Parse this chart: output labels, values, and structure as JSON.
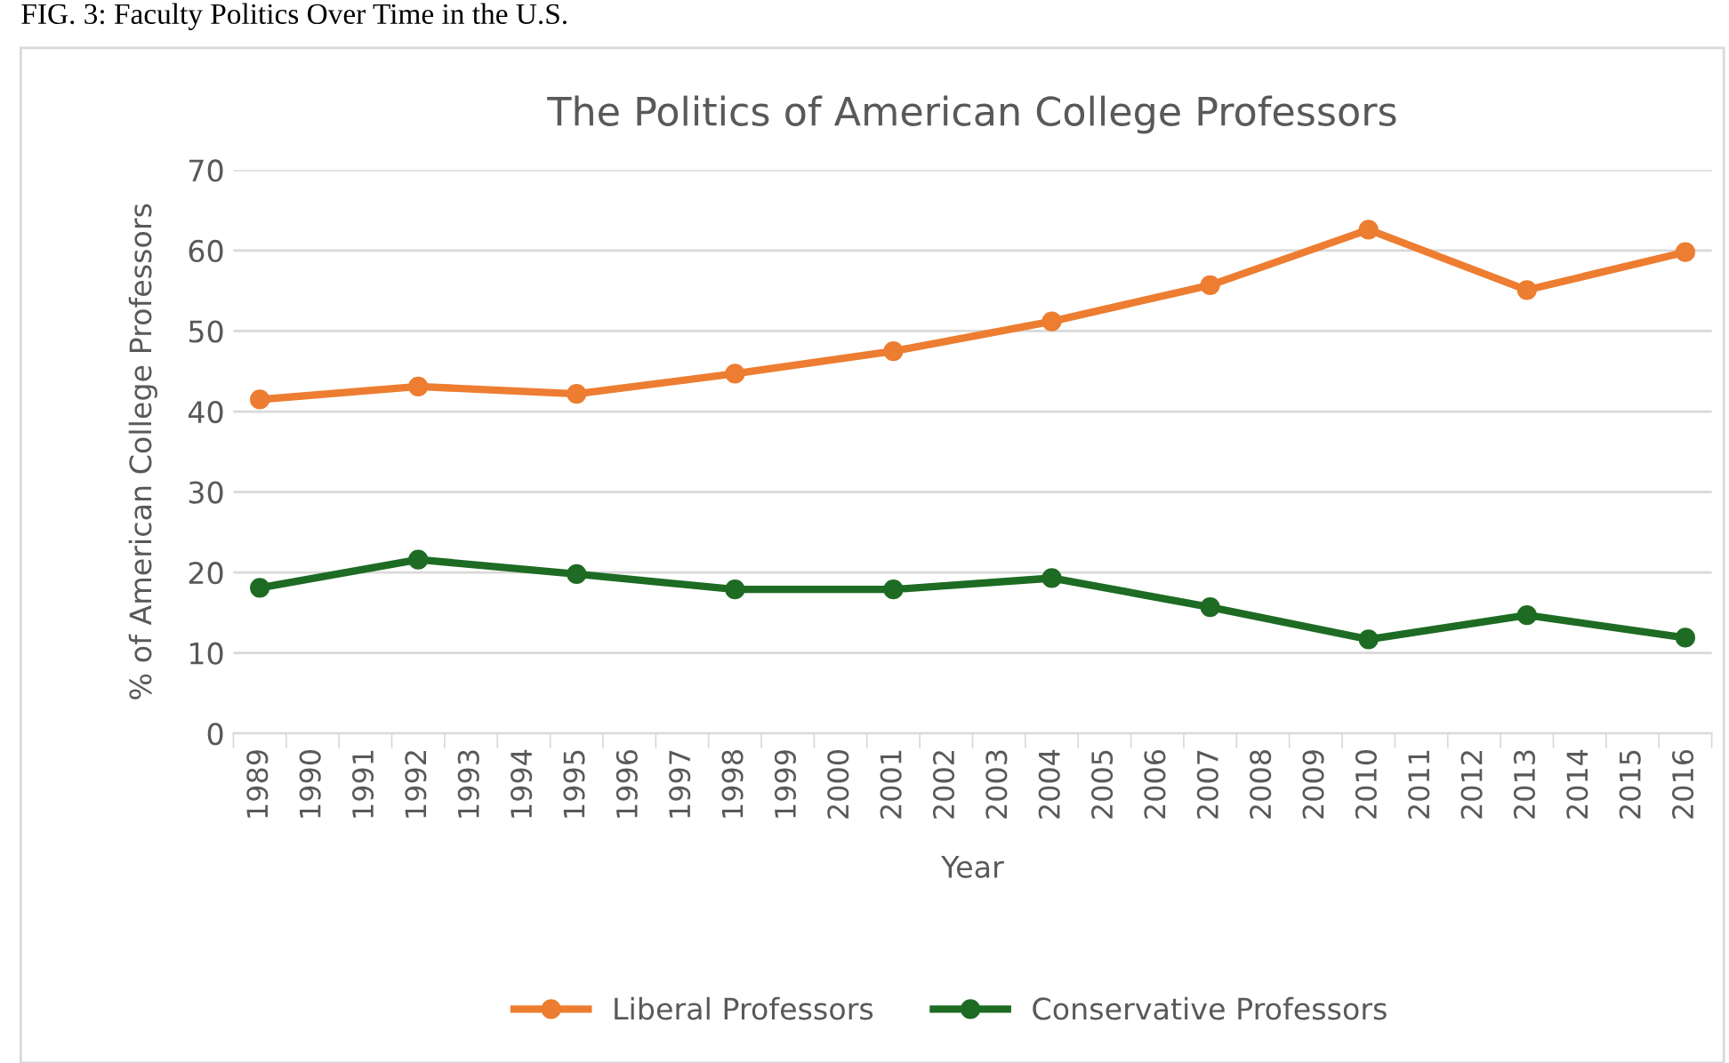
{
  "chart_data": {
    "type": "line",
    "title": "The Politics of American College Professors",
    "xlabel": "Year",
    "ylabel": "% of American College Professors",
    "annotations": [
      "FIG. 3: Faculty Politics Over Time in the U.S."
    ],
    "categories": [
      "1989",
      "1990",
      "1991",
      "1992",
      "1993",
      "1994",
      "1995",
      "1996",
      "1997",
      "1998",
      "1999",
      "2000",
      "2001",
      "2002",
      "2003",
      "2004",
      "2005",
      "2006",
      "2007",
      "2008",
      "2009",
      "2010",
      "2011",
      "2012",
      "2013",
      "2014",
      "2015",
      "2016"
    ],
    "series": [
      {
        "name": "Liberal Professors",
        "color": "#ed7d31",
        "values": [
          41.5,
          null,
          null,
          43.1,
          null,
          null,
          42.2,
          null,
          null,
          44.7,
          null,
          null,
          47.5,
          null,
          null,
          51.2,
          null,
          null,
          55.7,
          null,
          null,
          62.6,
          null,
          null,
          55.1,
          null,
          null,
          59.8
        ]
      },
      {
        "name": "Conservative Professors",
        "color": "#1e6b24",
        "values": [
          18.1,
          null,
          null,
          21.6,
          null,
          null,
          19.8,
          null,
          null,
          17.9,
          null,
          null,
          17.9,
          null,
          null,
          19.3,
          null,
          null,
          15.7,
          null,
          null,
          11.7,
          null,
          null,
          14.7,
          null,
          null,
          11.9
        ]
      }
    ],
    "ylim": [
      0,
      70
    ],
    "yticks": [
      0,
      10,
      20,
      30,
      40,
      50,
      60,
      70
    ],
    "grid": "y",
    "legend": "bottom",
    "marker": "circle",
    "line_style": "solid"
  }
}
